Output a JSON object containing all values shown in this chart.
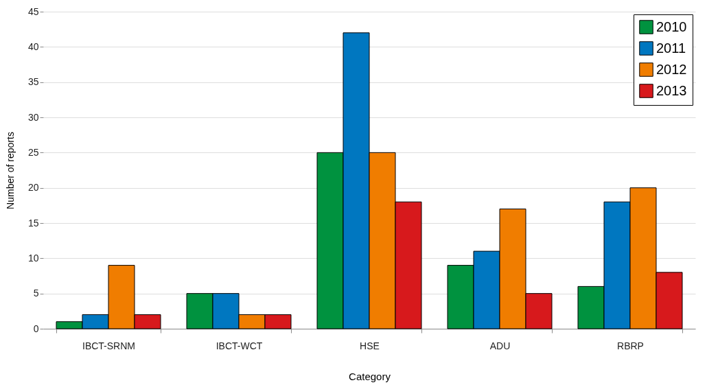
{
  "chart_data": {
    "type": "bar",
    "xlabel": "Category",
    "ylabel": "Number of reports",
    "categories": [
      "IBCT-SRNM",
      "IBCT-WCT",
      "HSE",
      "ADU",
      "RBRP"
    ],
    "series": [
      {
        "name": "2010",
        "color": "#00923f",
        "values": [
          1,
          5,
          25,
          9,
          6
        ]
      },
      {
        "name": "2011",
        "color": "#0077c0",
        "values": [
          2,
          5,
          42,
          11,
          18
        ]
      },
      {
        "name": "2012",
        "color": "#f07d00",
        "values": [
          9,
          2,
          25,
          17,
          20
        ]
      },
      {
        "name": "2013",
        "color": "#d7191c",
        "values": [
          2,
          2,
          18,
          5,
          8
        ]
      }
    ],
    "ylim": [
      0,
      45
    ],
    "yticks": [
      0,
      5,
      10,
      15,
      20,
      25,
      30,
      35,
      40,
      45
    ],
    "grid": "y",
    "legend": "top right"
  }
}
